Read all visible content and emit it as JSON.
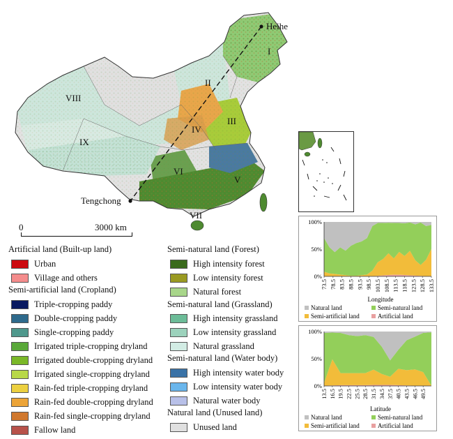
{
  "colors": {
    "natural": "#c0c0c0",
    "seminatural": "#93cf5a",
    "semiartificial": "#f2bc3a",
    "artificial": "#e8a0a0"
  },
  "map": {
    "region_labels": [
      "I",
      "II",
      "III",
      "IV",
      "V",
      "VI",
      "VII",
      "VIII",
      "IX"
    ],
    "city_north": "Heihe",
    "city_south": "Tengchong",
    "scale_start": "0",
    "scale_end": "3000 km"
  },
  "legend": {
    "groups": [
      {
        "title": "Artificial land (Built-up land)",
        "items": [
          {
            "label": "Urban",
            "color": "#cc0a10"
          },
          {
            "label": "Village and others",
            "color": "#f48c8c"
          }
        ]
      },
      {
        "title": "Semi-artificial land (Cropland)",
        "items": [
          {
            "label": "Triple-cropping paddy",
            "color": "#0a1a60"
          },
          {
            "label": "Double-cropping paddy",
            "color": "#2e6a8c"
          },
          {
            "label": "Single-cropping paddy",
            "color": "#4f988c"
          },
          {
            "label": "Irrigated triple-cropping dryland",
            "color": "#5aa83a"
          },
          {
            "label": "Irrigated double-cropping dryland",
            "color": "#7ab828"
          },
          {
            "label": "Irrigated single-cropping dryland",
            "color": "#b8d848"
          },
          {
            "label": "Rain-fed triple-cropping dryland",
            "color": "#ecd040"
          },
          {
            "label": "Rain-fed double-cropping dryland",
            "color": "#eca438"
          },
          {
            "label": "Rain-fed single-cropping dryland",
            "color": "#d0782e"
          },
          {
            "label": "Fallow land",
            "color": "#b8524a"
          }
        ]
      },
      {
        "title": "Semi-natural land (Forest)",
        "items": [
          {
            "label": "High intensity forest",
            "color": "#3a6a1c"
          },
          {
            "label": "Low intensity forest",
            "color": "#9a9a22"
          },
          {
            "label": "Natural forest",
            "color": "#a8d68a"
          }
        ]
      },
      {
        "title": "Semi-natural land (Grassland)",
        "items": [
          {
            "label": "High intensity grassland",
            "color": "#6cbc98"
          },
          {
            "label": "Low intensity grassland",
            "color": "#9cd2bc"
          },
          {
            "label": "Natural grassland",
            "color": "#d2ece4"
          }
        ]
      },
      {
        "title": "Semi-natural land (Water body)",
        "items": [
          {
            "label": "High intensity water body",
            "color": "#3a72a6"
          },
          {
            "label": "Low intensity water body",
            "color": "#6ab6ec"
          },
          {
            "label": "Natural water body",
            "color": "#b8c0e8"
          }
        ]
      },
      {
        "title": "Natural land (Unused land)",
        "items": [
          {
            "label": "Unused land",
            "color": "#e0e0e0"
          }
        ]
      }
    ]
  },
  "chart_data": [
    {
      "type": "area",
      "stacked": true,
      "xlabel": "Longitude",
      "ylabel": "",
      "ylim": [
        0,
        100
      ],
      "yticks": [
        "0%",
        "50%",
        "100%"
      ],
      "x": [
        73.5,
        76.5,
        79.5,
        82.5,
        85.5,
        88.5,
        91.5,
        94.5,
        97.5,
        100.5,
        103.5,
        106.5,
        109.5,
        112.5,
        115.5,
        118.5,
        121.5,
        124.5,
        127.5,
        130.5,
        133.5
      ],
      "xtick_labels": [
        "73.5",
        "78.5",
        "83.5",
        "88.5",
        "93.5",
        "98.5",
        "103.5",
        "108.5",
        "113.5",
        "118.5",
        "123.5",
        "128.5",
        "133.5"
      ],
      "series": [
        {
          "name": "Artificial land",
          "values": [
            0.5,
            0.5,
            0.5,
            0.3,
            0.2,
            0.2,
            0.2,
            0.2,
            0.3,
            0.5,
            1,
            2,
            2.5,
            3,
            3,
            2.5,
            2,
            1.5,
            1,
            0.5,
            0.5
          ]
        },
        {
          "name": "Semi-artificial land",
          "values": [
            8,
            5,
            4,
            3,
            2,
            1,
            1,
            2,
            3,
            10,
            25,
            30,
            40,
            30,
            42,
            35,
            45,
            28,
            20,
            30,
            50
          ]
        },
        {
          "name": "Semi-natural land",
          "values": [
            62,
            48,
            40,
            50,
            45,
            55,
            60,
            62,
            67,
            82,
            72,
            66,
            56,
            65,
            53,
            60,
            52,
            66,
            78,
            62,
            44
          ]
        },
        {
          "name": "Natural land",
          "values": [
            29.5,
            46.5,
            55.5,
            46.7,
            52.8,
            43.8,
            38.8,
            35.8,
            29.7,
            7.5,
            2,
            2,
            1.5,
            2,
            2,
            2.5,
            1,
            4.5,
            1,
            7.5,
            5.5
          ]
        }
      ],
      "legend": [
        "Natural land",
        "Semi-natural land",
        "Semi-artificial land",
        "Artificial land"
      ]
    },
    {
      "type": "area",
      "stacked": true,
      "xlabel": "Latitude",
      "ylabel": "",
      "ylim": [
        0,
        100
      ],
      "yticks": [
        "0%",
        "50%",
        "100%"
      ],
      "x": [
        13.5,
        16.5,
        19.5,
        22.5,
        25.5,
        28.5,
        31.5,
        34.5,
        37.5,
        40.5,
        43.5,
        46.5,
        49.5,
        52.5
      ],
      "xtick_labels": [
        "13.5",
        "16.5",
        "19.5",
        "22.5",
        "25.5",
        "28.5",
        "31.5",
        "34.5",
        "37.5",
        "40.5",
        "43.5",
        "46.5",
        "49.5"
      ],
      "series": [
        {
          "name": "Artificial land",
          "values": [
            0.5,
            1,
            1.5,
            1.5,
            1.5,
            1.5,
            2,
            2,
            2,
            1.5,
            1,
            0.5,
            0.5,
            0.5
          ]
        },
        {
          "name": "Semi-artificial land",
          "values": [
            5,
            48,
            22,
            22,
            22,
            22,
            28,
            20,
            15,
            30,
            28,
            30,
            25,
            0
          ]
        },
        {
          "name": "Semi-natural land",
          "values": [
            92,
            49,
            74,
            70,
            68,
            70,
            60,
            50,
            30,
            35,
            55,
            60,
            72,
            98
          ]
        },
        {
          "name": "Natural land",
          "values": [
            2.5,
            2,
            2.5,
            6.5,
            8.5,
            6.5,
            10,
            28,
            53,
            33.5,
            16,
            9.5,
            2.5,
            1.5
          ]
        }
      ],
      "legend": [
        "Natural land",
        "Semi-natural land",
        "Semi-artificial land",
        "Artificial land"
      ]
    }
  ]
}
